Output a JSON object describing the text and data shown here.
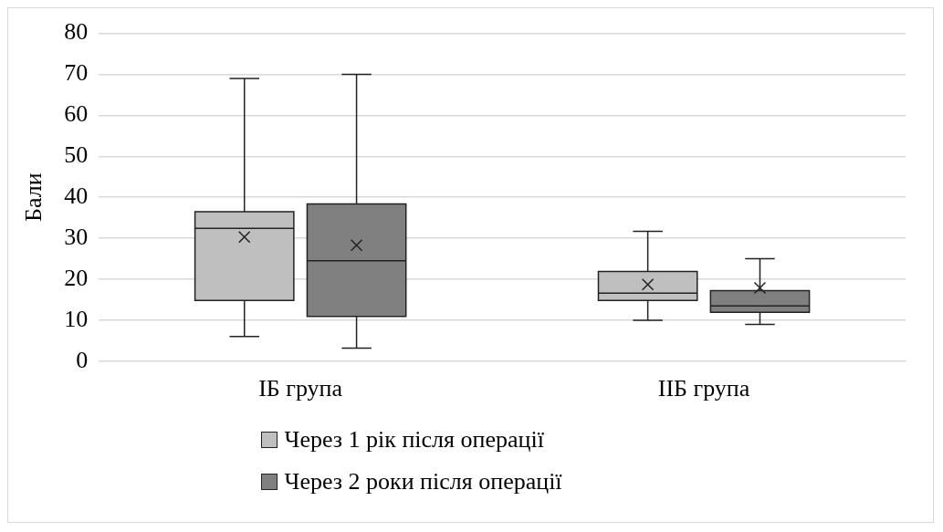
{
  "chart_data": {
    "type": "box",
    "ylabel": "Бали",
    "categories": [
      "IБ група",
      "IIБ група"
    ],
    "ylim": [
      0,
      80
    ],
    "yticks": [
      0,
      10,
      20,
      30,
      40,
      50,
      60,
      70,
      80
    ],
    "grid": "y",
    "legend": "bottom",
    "marker": "cross",
    "series": [
      {
        "name": "Через 1 рік після операції",
        "color": "#bfbfbf",
        "boxes": [
          {
            "low": 6,
            "q1": 14.8,
            "median": 32.4,
            "q3": 36.5,
            "high": 69,
            "mean": 30.3
          },
          {
            "low": 10,
            "q1": 14.8,
            "median": 16.6,
            "q3": 21.9,
            "high": 31.7,
            "mean": 18.7
          }
        ]
      },
      {
        "name": "Через 2 роки після операції",
        "color": "#808080",
        "boxes": [
          {
            "low": 3.2,
            "q1": 10.9,
            "median": 24.5,
            "q3": 38.4,
            "high": 70,
            "mean": 28.3
          },
          {
            "low": 9,
            "q1": 11.9,
            "median": 13.5,
            "q3": 17.2,
            "high": 25,
            "mean": 17.9
          }
        ]
      }
    ]
  }
}
